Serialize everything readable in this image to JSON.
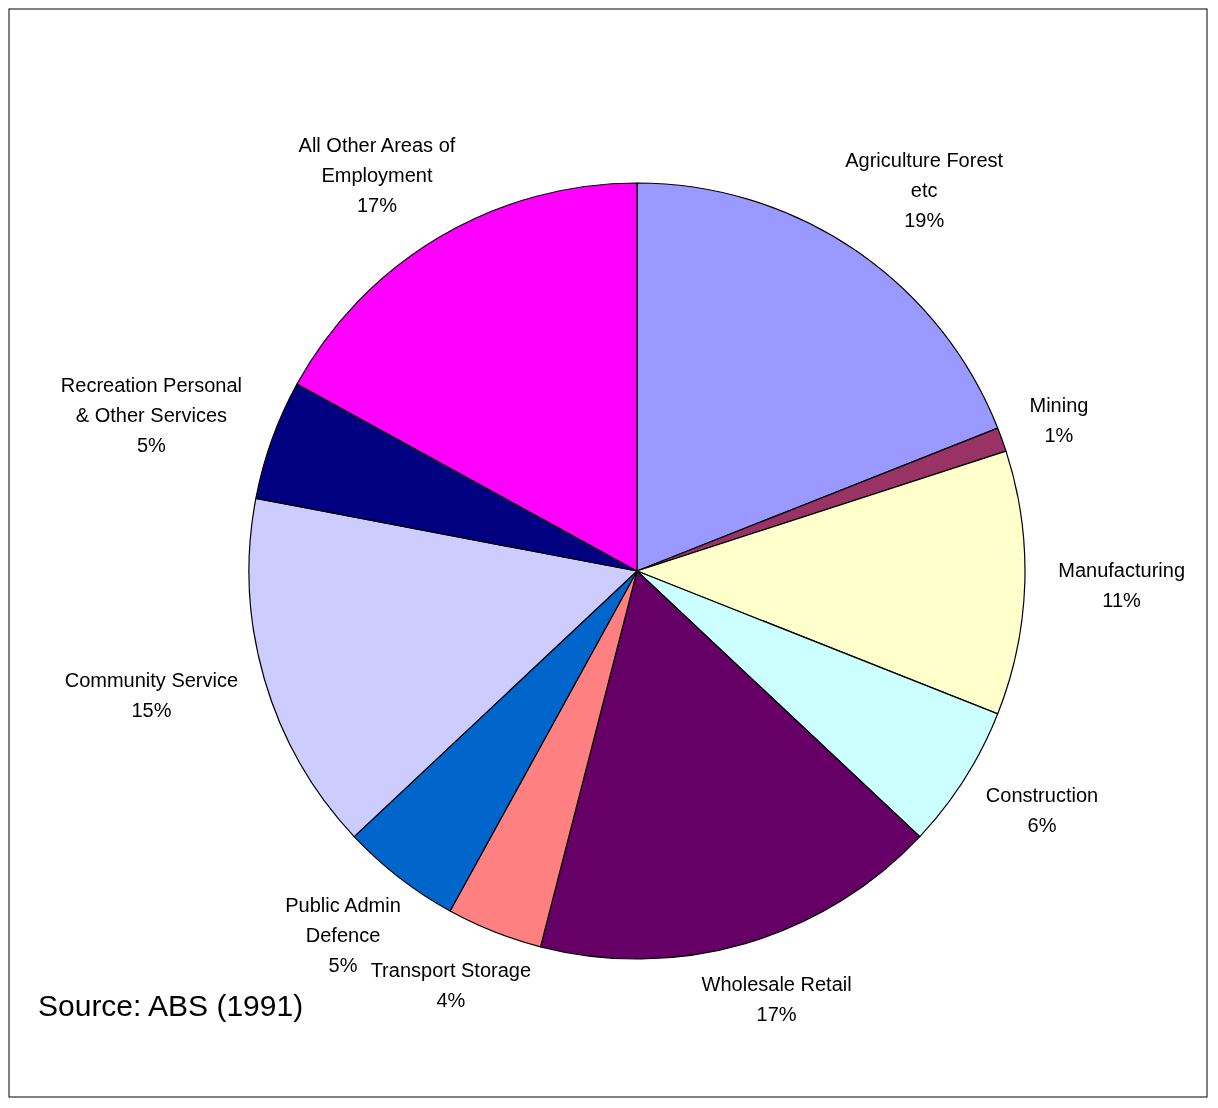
{
  "chart_data": {
    "type": "pie",
    "categories": [
      "Agriculture Forest etc",
      "Mining",
      "Manufacturing",
      "Construction",
      "Wholesale Retail",
      "Transport Storage",
      "Public Admin Defence",
      "Community Service",
      "Recreation Personal & Other Services",
      "All Other Areas of Employment"
    ],
    "values": [
      19,
      1,
      11,
      6,
      17,
      4,
      5,
      15,
      5,
      17
    ],
    "colors": [
      "#9999ff",
      "#993366",
      "#ffffcc",
      "#ccffff",
      "#660066",
      "#ff8080",
      "#0066cc",
      "#ccccff",
      "#000080",
      "#ff00ff"
    ],
    "value_labels": [
      "19%",
      "1%",
      "11%",
      "6%",
      "17%",
      "4%",
      "5%",
      "15%",
      "5%",
      "17%"
    ],
    "annotations": [
      "Source: ABS (1991)"
    ]
  }
}
